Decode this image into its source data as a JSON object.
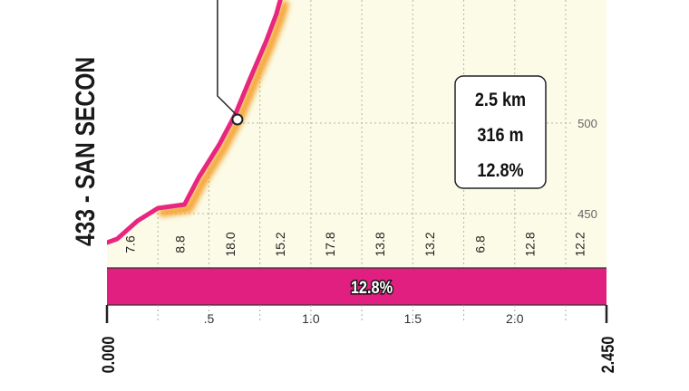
{
  "chart_data": {
    "type": "area",
    "title": "",
    "side_label": "433 - SAN SECON",
    "x_start_label": "0.000",
    "x_end_label": "2.450",
    "x_ticks": [
      ".5",
      "1.0",
      "1.5",
      "2.0"
    ],
    "y_ticks": [
      "500",
      "450"
    ],
    "gradient_labels": [
      "7.6",
      "8.8",
      "18.0",
      "15.2",
      "17.8",
      "13.8",
      "13.2",
      "6.8",
      "12.8",
      "12.2"
    ],
    "avg_bar_label": "12.8%",
    "info_box": {
      "distance": "2.5 km",
      "climb": "316 m",
      "gradient": "12.8%"
    },
    "elevation": {
      "x": [
        0.0,
        0.05,
        0.15,
        0.25,
        0.38,
        0.45,
        0.55,
        0.63,
        0.7,
        0.78,
        0.83,
        0.85
      ],
      "y": [
        434,
        436,
        446,
        453,
        455,
        470,
        488,
        505,
        524,
        545,
        560,
        568
      ]
    },
    "marker_point": {
      "x": 0.64,
      "y": 502
    },
    "xlim": [
      0,
      2.45
    ],
    "ylim": [
      420,
      568
    ],
    "colors": {
      "background": "#fbfbe7",
      "profile": "#e8267f",
      "glow": "#f59b21",
      "bar": "#e01f80",
      "grid": "#b5b5a0"
    }
  }
}
